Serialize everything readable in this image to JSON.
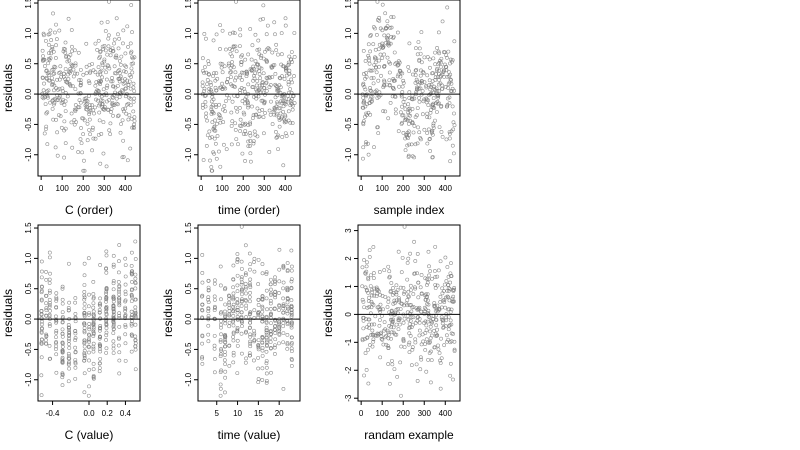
{
  "chart_data": [
    {
      "type": "scatter",
      "xlabel": "C (order)",
      "ylabel": "residuals",
      "xlim": [
        -15,
        470
      ],
      "ylim": [
        -1.35,
        1.55
      ],
      "xticks": [
        0,
        100,
        200,
        300,
        400
      ],
      "xticklabels": [
        "0",
        "100",
        "200",
        "300",
        "400"
      ],
      "yticks": [
        -1.0,
        -0.5,
        0.0,
        0.5,
        1.0,
        1.5
      ],
      "yticklabels": [
        "-1.0",
        "-0.5",
        "0.0",
        "0.5",
        "1.0",
        "1.5"
      ],
      "hline": 0,
      "grid": false,
      "n_points": 450,
      "spread": 0.5,
      "pattern": "index_drift",
      "x": [
        5,
        25,
        45,
        65,
        85,
        105,
        125,
        145,
        165,
        185,
        205,
        225,
        245,
        265,
        285,
        305,
        325,
        345,
        365,
        385,
        405,
        425,
        445
      ],
      "y": [
        0.25,
        0.3,
        0.35,
        0.28,
        0.22,
        0.15,
        0.18,
        0.05,
        -0.1,
        -0.25,
        -0.35,
        -0.22,
        -0.1,
        0.05,
        0.18,
        0.25,
        0.28,
        0.22,
        0.15,
        0.05,
        0.02,
        0.08,
        0.1
      ]
    },
    {
      "type": "scatter",
      "xlabel": "time (order)",
      "ylabel": "residuals",
      "xlim": [
        -15,
        470
      ],
      "ylim": [
        -1.35,
        1.55
      ],
      "xticks": [
        0,
        100,
        200,
        300,
        400
      ],
      "xticklabels": [
        "0",
        "100",
        "200",
        "300",
        "400"
      ],
      "yticks": [
        -1.0,
        -0.5,
        0.0,
        0.5,
        1.0,
        1.5
      ],
      "yticklabels": [
        "-1.0",
        "-0.5",
        "0.0",
        "0.5",
        "1.0",
        "1.5"
      ],
      "hline": 0,
      "grid": false,
      "n_points": 450,
      "spread": 0.5,
      "pattern": "index_drift",
      "x": [
        5,
        25,
        45,
        65,
        85,
        105,
        125,
        145,
        165,
        185,
        205,
        225,
        245,
        265,
        285,
        305,
        325,
        345,
        365,
        385,
        405,
        425,
        445
      ],
      "y": [
        0.05,
        0.0,
        -0.15,
        -0.2,
        -0.05,
        0.1,
        0.25,
        0.3,
        0.2,
        0.05,
        -0.05,
        -0.1,
        0.0,
        0.15,
        0.25,
        0.28,
        0.2,
        0.1,
        0.05,
        0.1,
        0.15,
        0.1,
        0.05
      ]
    },
    {
      "type": "scatter",
      "xlabel": "sample index",
      "ylabel": "residuals",
      "xlim": [
        -15,
        470
      ],
      "ylim": [
        -1.35,
        1.55
      ],
      "xticks": [
        0,
        100,
        200,
        300,
        400
      ],
      "xticklabels": [
        "0",
        "100",
        "200",
        "300",
        "400"
      ],
      "yticks": [
        -1.0,
        -0.5,
        0.0,
        0.5,
        1.0,
        1.5
      ],
      "yticklabels": [
        "-1.0",
        "-0.5",
        "0.0",
        "0.5",
        "1.0",
        "1.5"
      ],
      "hline": 0,
      "grid": false,
      "n_points": 450,
      "spread": 0.45,
      "pattern": "index_drift",
      "x": [
        5,
        25,
        45,
        65,
        85,
        105,
        125,
        145,
        165,
        185,
        205,
        225,
        245,
        265,
        285,
        305,
        325,
        345,
        365,
        385,
        405,
        425,
        445
      ],
      "y": [
        -0.1,
        0.05,
        0.15,
        0.25,
        0.45,
        0.7,
        0.8,
        0.55,
        0.3,
        0.05,
        -0.15,
        -0.3,
        -0.2,
        0.0,
        0.1,
        -0.05,
        -0.2,
        -0.1,
        0.15,
        0.35,
        0.3,
        -0.15,
        -0.4
      ]
    },
    {
      "type": "scatter",
      "xlabel": "C (value)",
      "ylabel": "residuals",
      "xlim": [
        -0.56,
        0.56
      ],
      "ylim": [
        -1.35,
        1.55
      ],
      "xticks": [
        -0.4,
        0.0,
        0.2,
        0.4
      ],
      "xticklabels": [
        "-0.4",
        "0.0",
        "0.2",
        "0.4"
      ],
      "yticks": [
        -1.0,
        -0.5,
        0.0,
        0.5,
        1.0,
        1.5
      ],
      "yticklabels": [
        "-1.0",
        "-0.5",
        "0.0",
        "0.5",
        "1.0",
        "1.5"
      ],
      "hline": 0,
      "grid": false,
      "n_points": 450,
      "spread": 0.45,
      "pattern": "discrete_columns",
      "x": [
        -0.52,
        -0.47,
        -0.43,
        -0.36,
        -0.29,
        -0.22,
        -0.15,
        -0.05,
        0.0,
        0.05,
        0.12,
        0.19,
        0.27,
        0.33,
        0.4,
        0.47,
        0.51
      ],
      "y": [
        0.15,
        0.05,
        -0.1,
        -0.15,
        -0.3,
        -0.25,
        -0.35,
        -0.2,
        -0.3,
        -0.2,
        -0.05,
        0.1,
        0.2,
        0.25,
        0.2,
        0.15,
        0.1
      ]
    },
    {
      "type": "scatter",
      "xlabel": "time (value)",
      "ylabel": "residuals",
      "xlim": [
        0.5,
        25
      ],
      "ylim": [
        -1.35,
        1.55
      ],
      "xticks": [
        5,
        10,
        15,
        20
      ],
      "xticklabels": [
        "5",
        "10",
        "15",
        "20"
      ],
      "yticks": [
        -1.0,
        -0.5,
        0.0,
        0.5,
        1.0,
        1.5
      ],
      "yticklabels": [
        "-1.0",
        "-0.5",
        "0.0",
        "0.5",
        "1.0",
        "1.5"
      ],
      "hline": 0,
      "grid": false,
      "n_points": 450,
      "spread": 0.48,
      "pattern": "discrete_columns",
      "x": [
        1.5,
        3,
        4.5,
        6,
        7,
        8,
        9,
        10,
        11,
        12,
        13,
        14,
        15,
        16,
        17,
        18,
        19,
        20,
        21,
        22,
        23
      ],
      "y": [
        0.1,
        0.15,
        0.05,
        -0.25,
        -0.35,
        -0.1,
        0.1,
        0.25,
        0.35,
        0.2,
        0.15,
        0.05,
        -0.05,
        -0.05,
        -0.15,
        -0.1,
        0.05,
        0.15,
        0.1,
        0.05,
        -0.05
      ]
    },
    {
      "type": "scatter",
      "xlabel": "randam example",
      "ylabel": "residuals",
      "xlim": [
        -15,
        470
      ],
      "ylim": [
        -3.1,
        3.2
      ],
      "xticks": [
        0,
        100,
        200,
        300,
        400
      ],
      "xticklabels": [
        "0",
        "100",
        "200",
        "300",
        "400"
      ],
      "yticks": [
        -3,
        -2,
        -1,
        0,
        1,
        2,
        3
      ],
      "yticklabels": [
        "-3",
        "-2",
        "-1",
        "0",
        "1",
        "2",
        "3"
      ],
      "hline": 0,
      "grid": false,
      "n_points": 450,
      "spread": 1.0,
      "pattern": "random_noise",
      "x": [
        5,
        445
      ],
      "y": [
        0,
        0
      ]
    }
  ]
}
